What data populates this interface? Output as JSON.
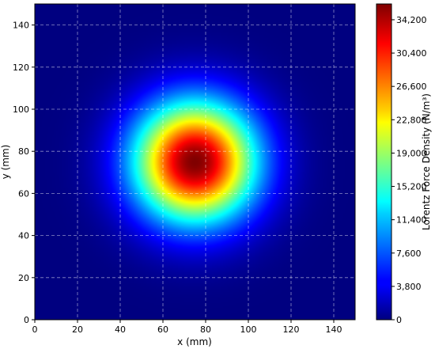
{
  "chart_data": {
    "type": "heatmap",
    "title": "",
    "xlabel": "x (mm)",
    "ylabel": "y (mm)",
    "xlim": [
      0,
      150
    ],
    "ylim": [
      0,
      150
    ],
    "xticks": [
      0,
      20,
      40,
      60,
      80,
      100,
      120,
      140
    ],
    "yticks": [
      0,
      20,
      40,
      60,
      80,
      100,
      120,
      140
    ],
    "grid": true,
    "colormap": "jet",
    "peak": {
      "x": 75,
      "y": 75,
      "value": 36000
    },
    "gaussian_sigma_mm": 20,
    "colorbar": {
      "label": "Lorentz Force Density (N/m³)",
      "range": [
        0,
        36000
      ],
      "ticks": [
        0,
        3800,
        7600,
        11400,
        15200,
        19000,
        22800,
        26600,
        30400,
        34200
      ],
      "tick_labels": [
        "0",
        "3,800",
        "7,600",
        "11,400",
        "15,200",
        "19,000",
        "22,800",
        "26,600",
        "30,400",
        "34,200"
      ]
    }
  }
}
